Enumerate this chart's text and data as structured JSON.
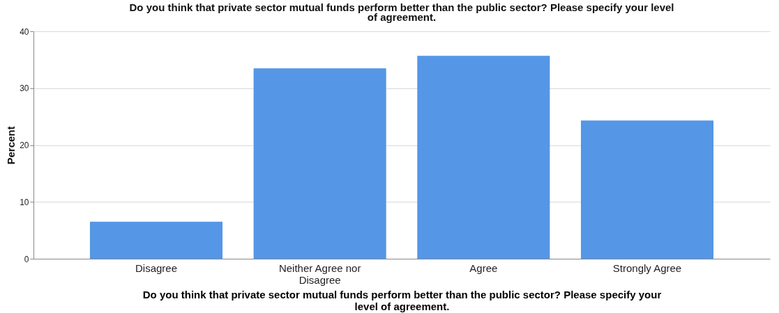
{
  "chart_data": {
    "type": "bar",
    "title": "Do you think that private sector mutual funds perform better than the public sector? Please specify your level of agreement.",
    "xlabel": "Do you think that private sector mutual funds perform better than the public sector? Please specify your level of agreement.",
    "ylabel": "Percent",
    "categories": [
      "Disagree",
      "Neither Agree nor Disagree",
      "Agree",
      "Strongly Agree"
    ],
    "values": [
      6.5,
      33.5,
      35.7,
      24.3
    ],
    "color": "#5596e6",
    "ylim": [
      0,
      40
    ],
    "yticks": [
      0,
      10,
      20,
      30,
      40
    ],
    "grid": "y"
  }
}
